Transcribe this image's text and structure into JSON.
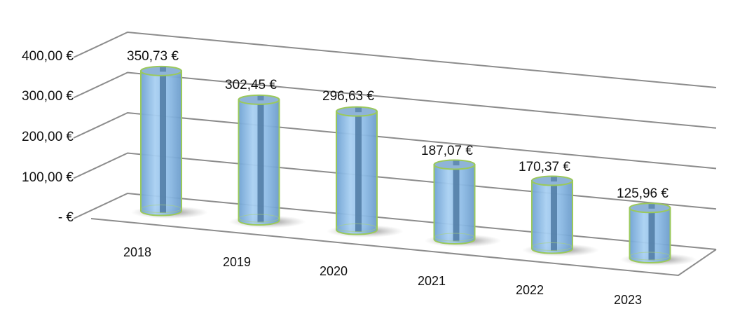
{
  "chart_data": {
    "type": "bar",
    "style": "3d-cylinder",
    "title": "",
    "xlabel": "",
    "ylabel": "",
    "categories": [
      "2018",
      "2019",
      "2020",
      "2021",
      "2022",
      "2023"
    ],
    "values": [
      350.73,
      302.45,
      296.63,
      187.07,
      170.37,
      125.96
    ],
    "data_labels": [
      "350,73 €",
      "302,45 €",
      "296,63 €",
      "187,07 €",
      "170,37 €",
      "125,96 €"
    ],
    "yticks": [
      0,
      100,
      200,
      300,
      400
    ],
    "ytick_labels": [
      "-   €",
      "100,00 €",
      "200,00 €",
      "300,00 €",
      "400,00 €"
    ],
    "ylim": [
      0,
      400
    ],
    "grid": true,
    "legend": null,
    "colors": {
      "bar_fill": "#8fbde6",
      "bar_edge": "#9bc95b",
      "bar_core": "#4f7aa3",
      "grid": "#8c8c8c"
    }
  }
}
